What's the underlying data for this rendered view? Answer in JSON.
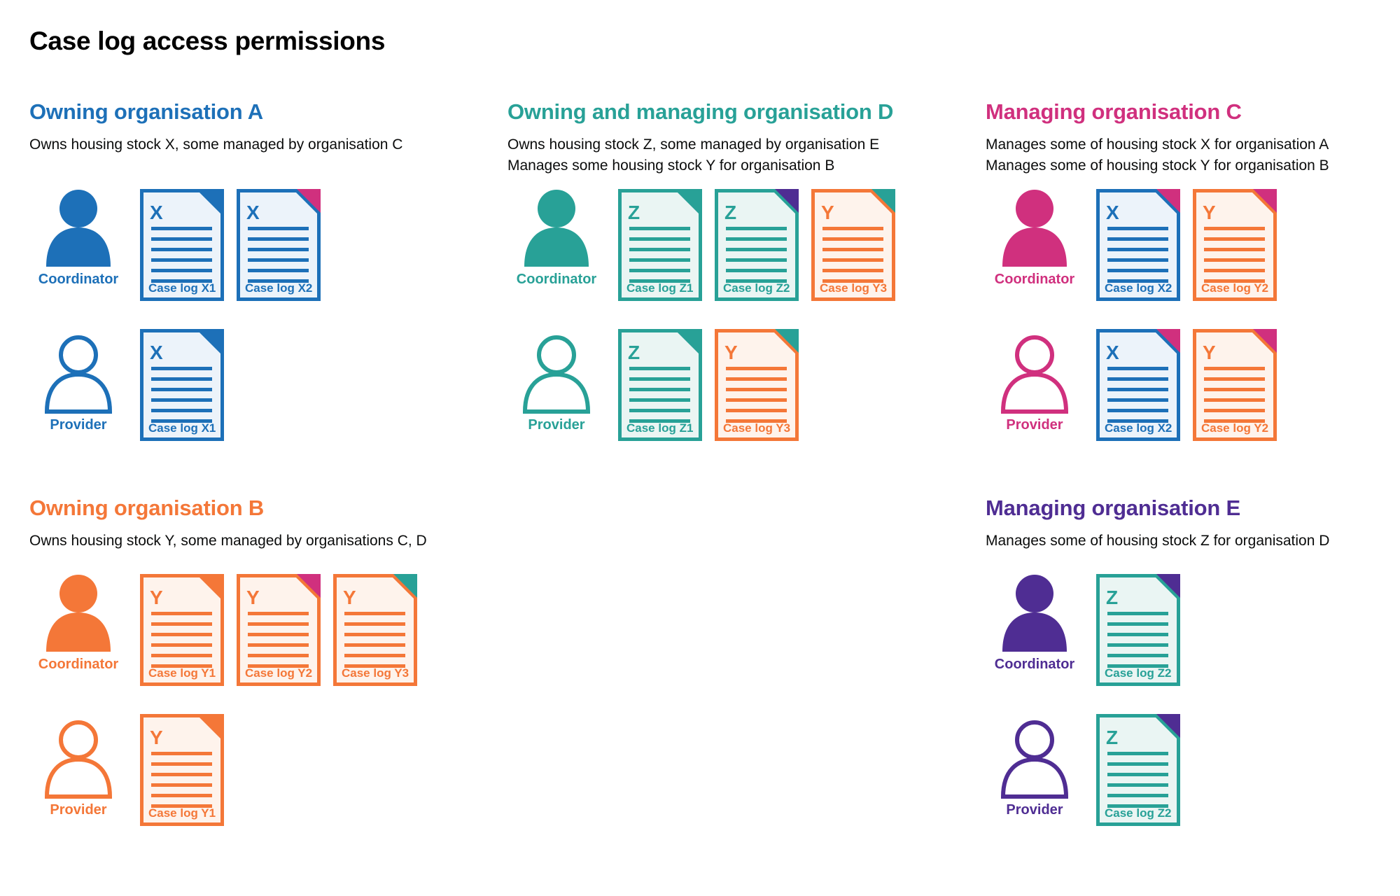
{
  "title": "Case log access permissions",
  "text_color": "#0b0c0c",
  "labels": {
    "coordinator": "Coordinator",
    "provider": "Provider"
  },
  "colors": {
    "blue": {
      "stroke": "#1d70b8",
      "fill": "#ecf3fa"
    },
    "teal": {
      "stroke": "#28a197",
      "fill": "#eaf5f3"
    },
    "orange": {
      "stroke": "#f47738",
      "fill": "#fef3ec"
    },
    "pink": {
      "stroke": "#d0307e",
      "fill": "#fbeaf2"
    },
    "purple": {
      "stroke": "#4f2d93",
      "fill": "#eeebf6"
    }
  },
  "organisations": [
    {
      "id": "org-a",
      "color": "blue",
      "heading": "Owning organisation A",
      "description": [
        "Owns housing stock X, some managed by organisation C"
      ],
      "rows": [
        {
          "role": "coordinator",
          "docs": [
            {
              "letter": "X",
              "label": "Case log X1",
              "scheme": "blue",
              "fold": "blue"
            },
            {
              "letter": "X",
              "label": "Case log X2",
              "scheme": "blue",
              "fold": "pink"
            }
          ]
        },
        {
          "role": "provider",
          "docs": [
            {
              "letter": "X",
              "label": "Case log X1",
              "scheme": "blue",
              "fold": "blue"
            }
          ]
        }
      ]
    },
    {
      "id": "org-d",
      "color": "teal",
      "heading": "Owning and managing organisation D",
      "description": [
        "Owns housing stock Z, some managed by organisation E",
        "Manages some housing stock Y for organisation B"
      ],
      "rows": [
        {
          "role": "coordinator",
          "docs": [
            {
              "letter": "Z",
              "label": "Case log Z1",
              "scheme": "teal",
              "fold": "teal"
            },
            {
              "letter": "Z",
              "label": "Case log Z2",
              "scheme": "teal",
              "fold": "purple"
            },
            {
              "letter": "Y",
              "label": "Case log Y3",
              "scheme": "orange",
              "fold": "teal"
            }
          ]
        },
        {
          "role": "provider",
          "docs": [
            {
              "letter": "Z",
              "label": "Case log Z1",
              "scheme": "teal",
              "fold": "teal"
            },
            {
              "letter": "Y",
              "label": "Case log Y3",
              "scheme": "orange",
              "fold": "teal"
            }
          ]
        }
      ]
    },
    {
      "id": "org-c",
      "color": "pink",
      "heading": "Managing organisation C",
      "description": [
        "Manages some of housing stock X for organisation A",
        "Manages some of housing stock Y for organisation B"
      ],
      "rows": [
        {
          "role": "coordinator",
          "docs": [
            {
              "letter": "X",
              "label": "Case log X2",
              "scheme": "blue",
              "fold": "pink"
            },
            {
              "letter": "Y",
              "label": "Case log Y2",
              "scheme": "orange",
              "fold": "pink"
            }
          ]
        },
        {
          "role": "provider",
          "docs": [
            {
              "letter": "X",
              "label": "Case log X2",
              "scheme": "blue",
              "fold": "pink"
            },
            {
              "letter": "Y",
              "label": "Case log Y2",
              "scheme": "orange",
              "fold": "pink"
            }
          ]
        }
      ]
    },
    {
      "id": "org-b",
      "color": "orange",
      "heading": "Owning organisation B",
      "description": [
        "Owns housing stock Y, some managed by organisations C, D"
      ],
      "rows": [
        {
          "role": "coordinator",
          "docs": [
            {
              "letter": "Y",
              "label": "Case log Y1",
              "scheme": "orange",
              "fold": "orange"
            },
            {
              "letter": "Y",
              "label": "Case log Y2",
              "scheme": "orange",
              "fold": "pink"
            },
            {
              "letter": "Y",
              "label": "Case log Y3",
              "scheme": "orange",
              "fold": "teal"
            }
          ]
        },
        {
          "role": "provider",
          "docs": [
            {
              "letter": "Y",
              "label": "Case log Y1",
              "scheme": "orange",
              "fold": "orange"
            }
          ]
        }
      ]
    },
    {
      "id": "org-e",
      "color": "purple",
      "heading": "Managing organisation E",
      "description": [
        "Manages some of housing stock Z for organisation D"
      ],
      "rows": [
        {
          "role": "coordinator",
          "docs": [
            {
              "letter": "Z",
              "label": "Case log Z2",
              "scheme": "teal",
              "fold": "purple"
            }
          ]
        },
        {
          "role": "provider",
          "docs": [
            {
              "letter": "Z",
              "label": "Case log Z2",
              "scheme": "teal",
              "fold": "purple"
            }
          ]
        }
      ]
    }
  ]
}
